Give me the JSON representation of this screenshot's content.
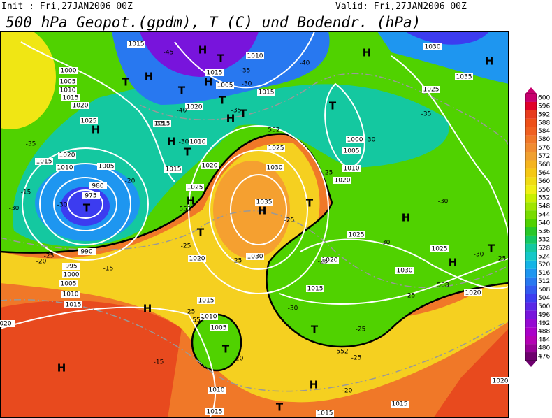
{
  "header": {
    "init": "Init : Fri,27JAN2006 00Z",
    "valid": "Valid: Fri,27JAN2006 00Z",
    "title": "500 hPa Geopot.(gpdm), T (C) und Bodendr. (hPa)"
  },
  "colorbar": {
    "ticks": [
      476,
      480,
      484,
      488,
      492,
      496,
      500,
      504,
      508,
      512,
      516,
      520,
      524,
      528,
      532,
      536,
      540,
      544,
      548,
      552,
      556,
      560,
      564,
      568,
      572,
      576,
      580,
      584,
      588,
      592,
      596,
      600
    ],
    "colors": [
      "#6e006e",
      "#960096",
      "#b400b4",
      "#aa00c8",
      "#960ad2",
      "#7814dc",
      "#5a28e6",
      "#3c3cf0",
      "#325af0",
      "#2878f0",
      "#1e96f0",
      "#14b4e6",
      "#14c8c8",
      "#14c8a0",
      "#14c864",
      "#28c828",
      "#50d200",
      "#78dc00",
      "#a0e600",
      "#c8f000",
      "#f0f014",
      "#f0dc14",
      "#f5c814",
      "#f5b41e",
      "#f0a030",
      "#f08c30",
      "#f07828",
      "#f06020",
      "#ee5018",
      "#e83c1e",
      "#e0002a",
      "#c8006e"
    ]
  },
  "map": {
    "pressure_centers": [
      "H",
      "T",
      "H",
      "T",
      "T",
      "H",
      "T",
      "H",
      "T",
      "H",
      "H",
      "T",
      "T",
      "H",
      "T",
      "H",
      "T",
      "H",
      "H",
      "T",
      "H",
      "H",
      "T",
      "H",
      "T",
      "T",
      "H",
      "T",
      "H"
    ],
    "isobar_labels": [
      "1015",
      "1010",
      "1000",
      "1005",
      "1010",
      "1015",
      "1020",
      "1025",
      "1015",
      "1005",
      "1020",
      "1015",
      "1010",
      "1020",
      "1015",
      "1010",
      "1005",
      "980",
      "975",
      "1015",
      "1020",
      "1025",
      "1025",
      "1030",
      "1035",
      "1030",
      "1020",
      "1020",
      "1010",
      "1005",
      "1000",
      "1025",
      "1020",
      "1015",
      "990",
      "995",
      "1000",
      "1005",
      "1010",
      "1015",
      "020",
      "1015",
      "1010",
      "1005",
      "1010",
      "1015",
      "1030",
      "1025",
      "1020",
      "1035",
      "1030",
      "1025",
      "1020",
      "1015",
      "1015",
      "1015"
    ],
    "temperature_labels": [
      "-45",
      "-40",
      "-35",
      "-30",
      "-40",
      "-35",
      "-30",
      "-35",
      "-35",
      "-30",
      "-30",
      "-25",
      "-20",
      "-15",
      "-20",
      "-25",
      "-25",
      "-25",
      "-25",
      "-30",
      "-35",
      "-30",
      "-30",
      "-25",
      "-30",
      "-25",
      "-30",
      "-25",
      "-25",
      "-25",
      "-20",
      "-15",
      "-25",
      "-20",
      "-15"
    ],
    "contour_labels": [
      "552",
      "552",
      "552",
      "552",
      "568"
    ]
  }
}
